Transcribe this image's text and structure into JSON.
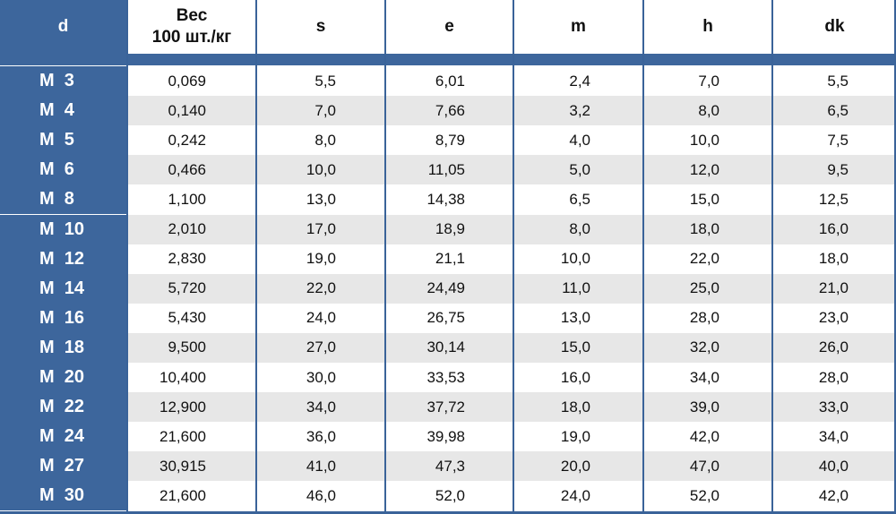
{
  "headers": {
    "d": "d",
    "weight_line1": "Вес",
    "weight_line2": "100 шт./кг",
    "s": "s",
    "e": "e",
    "m": "m",
    "h": "h",
    "dk": "dk"
  },
  "rows": [
    {
      "d": "M  3",
      "weight": "0,069",
      "s": "5,5",
      "e": "6,01",
      "m": "2,4",
      "h": "7,0",
      "dk": "5,5"
    },
    {
      "d": "M  4",
      "weight": "0,140",
      "s": "7,0",
      "e": "7,66",
      "m": "3,2",
      "h": "8,0",
      "dk": "6,5"
    },
    {
      "d": "M  5",
      "weight": "0,242",
      "s": "8,0",
      "e": "8,79",
      "m": "4,0",
      "h": "10,0",
      "dk": "7,5"
    },
    {
      "d": "M  6",
      "weight": "0,466",
      "s": "10,0",
      "e": "11,05",
      "m": "5,0",
      "h": "12,0",
      "dk": "9,5"
    },
    {
      "d": "M  8",
      "weight": "1,100",
      "s": "13,0",
      "e": "14,38",
      "m": "6,5",
      "h": "15,0",
      "dk": "12,5"
    },
    {
      "d": "M  10",
      "weight": "2,010",
      "s": "17,0",
      "e": "18,9",
      "m": "8,0",
      "h": "18,0",
      "dk": "16,0"
    },
    {
      "d": "M  12",
      "weight": "2,830",
      "s": "19,0",
      "e": "21,1",
      "m": "10,0",
      "h": "22,0",
      "dk": "18,0"
    },
    {
      "d": "M  14",
      "weight": "5,720",
      "s": "22,0",
      "e": "24,49",
      "m": "11,0",
      "h": "25,0",
      "dk": "21,0"
    },
    {
      "d": "M  16",
      "weight": "5,430",
      "s": "24,0",
      "e": "26,75",
      "m": "13,0",
      "h": "28,0",
      "dk": "23,0"
    },
    {
      "d": "M  18",
      "weight": "9,500",
      "s": "27,0",
      "e": "30,14",
      "m": "15,0",
      "h": "32,0",
      "dk": "26,0"
    },
    {
      "d": "M  20",
      "weight": "10,400",
      "s": "30,0",
      "e": "33,53",
      "m": "16,0",
      "h": "34,0",
      "dk": "28,0"
    },
    {
      "d": "M  22",
      "weight": "12,900",
      "s": "34,0",
      "e": "37,72",
      "m": "18,0",
      "h": "39,0",
      "dk": "33,0"
    },
    {
      "d": "M  24",
      "weight": "21,600",
      "s": "36,0",
      "e": "39,98",
      "m": "19,0",
      "h": "42,0",
      "dk": "34,0"
    },
    {
      "d": "M  27",
      "weight": "30,915",
      "s": "41,0",
      "e": "47,3",
      "m": "20,0",
      "h": "47,0",
      "dk": "40,0"
    },
    {
      "d": "M  30",
      "weight": "21,600",
      "s": "46,0",
      "e": "52,0",
      "m": "24,0",
      "h": "52,0",
      "dk": "42,0"
    }
  ],
  "colors": {
    "header_blue": "#3d669c",
    "grid_line": "#3a6399",
    "alt_row": "#e7e7e7"
  }
}
